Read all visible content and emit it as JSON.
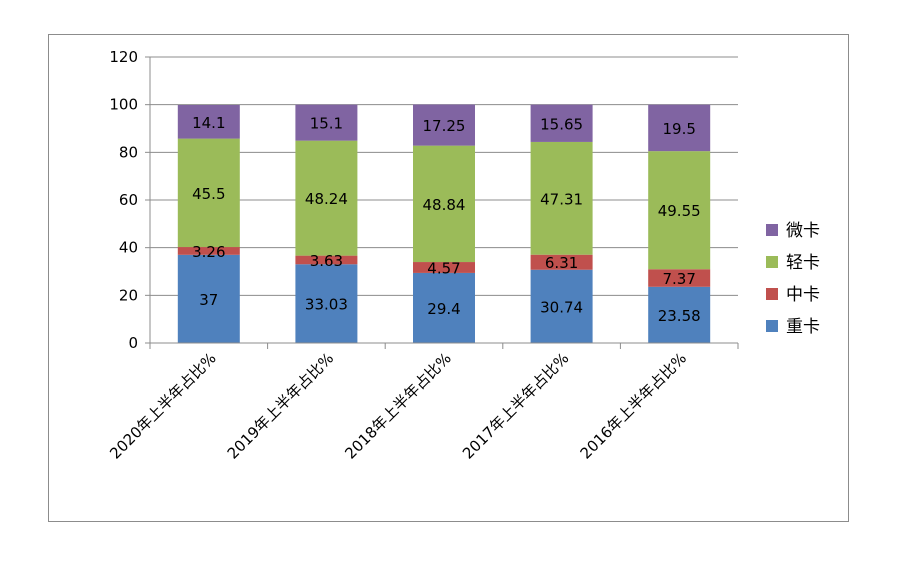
{
  "chart_data": {
    "type": "bar",
    "stacked": true,
    "categories": [
      "2020年上半年占比%",
      "2019年上半年占比%",
      "2018年上半年占比%",
      "2017年上半年占比%",
      "2016年上半年占比%"
    ],
    "series": [
      {
        "name": "重卡",
        "color": "#4f81bd",
        "values": [
          37,
          33.03,
          29.4,
          30.74,
          23.58
        ],
        "labels": [
          "37",
          "33.03",
          "29.4",
          "30.74",
          "23.58"
        ]
      },
      {
        "name": "中卡",
        "color": "#c0504d",
        "values": [
          3.26,
          3.63,
          4.57,
          6.31,
          7.37
        ],
        "labels": [
          "3.26",
          "3.63",
          "4.57",
          "6.31",
          "7.37"
        ]
      },
      {
        "name": "轻卡",
        "color": "#9bbb59",
        "values": [
          45.5,
          48.24,
          48.84,
          47.31,
          49.55
        ],
        "labels": [
          "45.5",
          "48.24",
          "48.84",
          "47.31",
          "49.55"
        ]
      },
      {
        "name": "微卡",
        "color": "#8064a2",
        "values": [
          14.1,
          15.1,
          17.25,
          15.65,
          19.5
        ],
        "labels": [
          "14.1",
          "15.1",
          "17.25",
          "15.65",
          "19.5"
        ]
      }
    ],
    "ylim": [
      0,
      120
    ],
    "yticks": [
      0,
      20,
      40,
      60,
      80,
      100,
      120
    ],
    "grid": true,
    "legend": "right",
    "legend_order": [
      "微卡",
      "轻卡",
      "中卡",
      "重卡"
    ]
  }
}
